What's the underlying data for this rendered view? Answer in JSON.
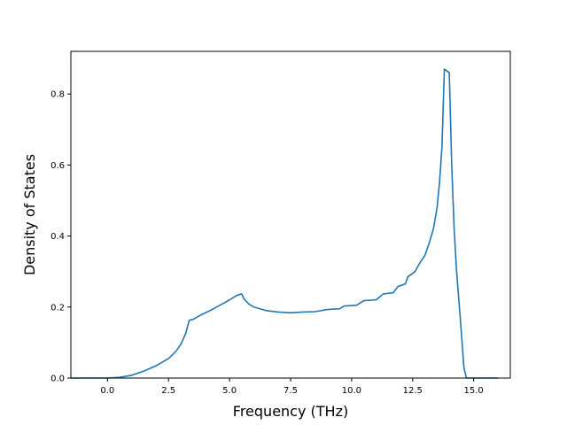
{
  "chart_data": {
    "type": "line",
    "title": "",
    "xlabel": "Frequency (THz)",
    "ylabel": "Density of States",
    "xlim": [
      -1.5,
      16.5
    ],
    "ylim": [
      0.0,
      0.92
    ],
    "x_ticks": [
      0.0,
      2.5,
      5.0,
      7.5,
      10.0,
      12.5,
      15.0
    ],
    "x_tick_labels": [
      "0.0",
      "2.5",
      "5.0",
      "7.5",
      "10.0",
      "12.5",
      "15.0"
    ],
    "y_ticks": [
      0.0,
      0.2,
      0.4,
      0.6,
      0.8
    ],
    "y_tick_labels": [
      "0.0",
      "0.2",
      "0.4",
      "0.6",
      "0.8"
    ],
    "grid": false,
    "legend": "none",
    "series": [
      {
        "color": "#1f77b4",
        "points": [
          [
            -1.5,
            0.0
          ],
          [
            0.0,
            0.0
          ],
          [
            0.5,
            0.002
          ],
          [
            1.0,
            0.008
          ],
          [
            1.5,
            0.02
          ],
          [
            2.0,
            0.035
          ],
          [
            2.5,
            0.055
          ],
          [
            2.8,
            0.075
          ],
          [
            3.0,
            0.095
          ],
          [
            3.2,
            0.125
          ],
          [
            3.35,
            0.163
          ],
          [
            3.5,
            0.165
          ],
          [
            3.8,
            0.177
          ],
          [
            4.2,
            0.19
          ],
          [
            4.6,
            0.205
          ],
          [
            5.0,
            0.22
          ],
          [
            5.3,
            0.233
          ],
          [
            5.5,
            0.237
          ],
          [
            5.6,
            0.222
          ],
          [
            5.8,
            0.208
          ],
          [
            6.0,
            0.2
          ],
          [
            6.5,
            0.19
          ],
          [
            7.0,
            0.186
          ],
          [
            7.5,
            0.184
          ],
          [
            8.0,
            0.186
          ],
          [
            8.5,
            0.187
          ],
          [
            9.0,
            0.193
          ],
          [
            9.5,
            0.195
          ],
          [
            9.7,
            0.203
          ],
          [
            10.2,
            0.205
          ],
          [
            10.5,
            0.218
          ],
          [
            11.0,
            0.22
          ],
          [
            11.3,
            0.237
          ],
          [
            11.7,
            0.24
          ],
          [
            11.9,
            0.258
          ],
          [
            12.2,
            0.265
          ],
          [
            12.3,
            0.285
          ],
          [
            12.6,
            0.3
          ],
          [
            12.8,
            0.325
          ],
          [
            13.0,
            0.345
          ],
          [
            13.2,
            0.385
          ],
          [
            13.35,
            0.42
          ],
          [
            13.5,
            0.48
          ],
          [
            13.6,
            0.55
          ],
          [
            13.7,
            0.65
          ],
          [
            13.8,
            0.87
          ],
          [
            14.0,
            0.86
          ],
          [
            14.1,
            0.6
          ],
          [
            14.2,
            0.42
          ],
          [
            14.3,
            0.3
          ],
          [
            14.45,
            0.17
          ],
          [
            14.6,
            0.03
          ],
          [
            14.7,
            0.0
          ],
          [
            16.0,
            0.0
          ]
        ]
      }
    ]
  }
}
